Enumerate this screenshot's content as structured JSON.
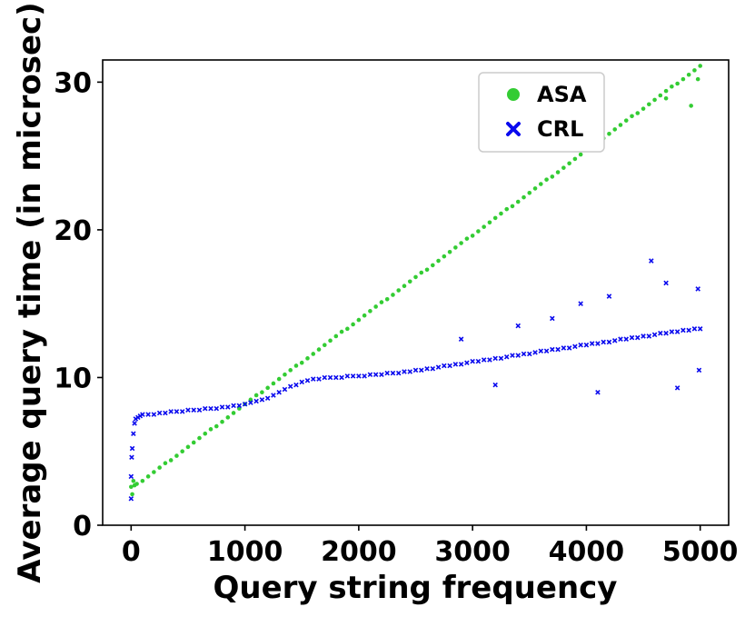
{
  "chart_data": {
    "type": "scatter",
    "title": "",
    "xlabel": "Query string frequency",
    "ylabel": "Average query time (in microsec)",
    "xlim": [
      -250,
      5250
    ],
    "ylim": [
      0,
      31.5
    ],
    "xticks": [
      0,
      1000,
      2000,
      3000,
      4000,
      5000
    ],
    "xtick_labels": [
      "0",
      "1000",
      "2000",
      "3000",
      "4000",
      "5000"
    ],
    "yticks": [
      0,
      10,
      20,
      30
    ],
    "ytick_labels": [
      "0",
      "10",
      "20",
      "30"
    ],
    "grid": false,
    "legend_position": "top-right",
    "series": [
      {
        "name": "ASA",
        "marker": "circle",
        "color": "#33cc33",
        "points": [
          [
            0,
            2.6
          ],
          [
            10,
            2.1
          ],
          [
            20,
            3.0
          ],
          [
            30,
            2.7
          ],
          [
            50,
            2.8
          ],
          [
            100,
            3.0
          ],
          [
            150,
            3.3
          ],
          [
            200,
            3.6
          ],
          [
            250,
            3.9
          ],
          [
            300,
            4.2
          ],
          [
            350,
            4.4
          ],
          [
            400,
            4.7
          ],
          [
            450,
            5.0
          ],
          [
            500,
            5.3
          ],
          [
            550,
            5.6
          ],
          [
            600,
            5.9
          ],
          [
            650,
            6.2
          ],
          [
            700,
            6.5
          ],
          [
            750,
            6.7
          ],
          [
            800,
            7.0
          ],
          [
            850,
            7.3
          ],
          [
            900,
            7.6
          ],
          [
            950,
            7.9
          ],
          [
            1000,
            8.2
          ],
          [
            1050,
            8.5
          ],
          [
            1100,
            8.8
          ],
          [
            1150,
            9.0
          ],
          [
            1200,
            9.3
          ],
          [
            1250,
            9.6
          ],
          [
            1300,
            9.9
          ],
          [
            1350,
            10.2
          ],
          [
            1400,
            10.5
          ],
          [
            1450,
            10.8
          ],
          [
            1500,
            11.0
          ],
          [
            1550,
            11.3
          ],
          [
            1600,
            11.6
          ],
          [
            1650,
            11.9
          ],
          [
            1700,
            12.2
          ],
          [
            1750,
            12.5
          ],
          [
            1800,
            12.8
          ],
          [
            1850,
            13.1
          ],
          [
            1900,
            13.3
          ],
          [
            1950,
            13.6
          ],
          [
            2000,
            13.9
          ],
          [
            2050,
            14.2
          ],
          [
            2100,
            14.5
          ],
          [
            2150,
            14.8
          ],
          [
            2200,
            15.1
          ],
          [
            2250,
            15.3
          ],
          [
            2300,
            15.6
          ],
          [
            2350,
            15.9
          ],
          [
            2400,
            16.2
          ],
          [
            2450,
            16.5
          ],
          [
            2500,
            16.8
          ],
          [
            2550,
            17.1
          ],
          [
            2600,
            17.3
          ],
          [
            2650,
            17.6
          ],
          [
            2700,
            17.9
          ],
          [
            2750,
            18.2
          ],
          [
            2800,
            18.5
          ],
          [
            2850,
            18.8
          ],
          [
            2900,
            19.1
          ],
          [
            2950,
            19.4
          ],
          [
            3000,
            19.6
          ],
          [
            3050,
            19.9
          ],
          [
            3100,
            20.2
          ],
          [
            3150,
            20.5
          ],
          [
            3200,
            20.8
          ],
          [
            3250,
            21.1
          ],
          [
            3300,
            21.4
          ],
          [
            3350,
            21.6
          ],
          [
            3400,
            21.9
          ],
          [
            3450,
            22.2
          ],
          [
            3500,
            22.5
          ],
          [
            3550,
            22.8
          ],
          [
            3600,
            23.1
          ],
          [
            3650,
            23.4
          ],
          [
            3700,
            23.6
          ],
          [
            3750,
            23.9
          ],
          [
            3800,
            24.2
          ],
          [
            3850,
            24.5
          ],
          [
            3900,
            24.8
          ],
          [
            3950,
            25.1
          ],
          [
            4000,
            25.4
          ],
          [
            4050,
            25.6
          ],
          [
            4100,
            25.9
          ],
          [
            4150,
            26.2
          ],
          [
            4200,
            26.5
          ],
          [
            4250,
            26.8
          ],
          [
            4300,
            27.1
          ],
          [
            4350,
            27.4
          ],
          [
            4400,
            27.7
          ],
          [
            4450,
            27.9
          ],
          [
            4500,
            28.2
          ],
          [
            4550,
            28.5
          ],
          [
            4600,
            28.8
          ],
          [
            4650,
            29.1
          ],
          [
            4700,
            29.4
          ],
          [
            4750,
            29.7
          ],
          [
            4800,
            29.9
          ],
          [
            4850,
            30.2
          ],
          [
            4900,
            30.5
          ],
          [
            4950,
            30.8
          ],
          [
            5000,
            31.1
          ],
          [
            4980,
            30.2
          ],
          [
            4700,
            28.9
          ],
          [
            4920,
            28.4
          ]
        ]
      },
      {
        "name": "CRL",
        "marker": "x",
        "color": "#0a0aee",
        "points": [
          [
            0,
            1.8
          ],
          [
            0,
            3.3
          ],
          [
            5,
            4.6
          ],
          [
            10,
            5.2
          ],
          [
            20,
            6.2
          ],
          [
            30,
            6.9
          ],
          [
            40,
            7.2
          ],
          [
            60,
            7.3
          ],
          [
            80,
            7.4
          ],
          [
            100,
            7.5
          ],
          [
            150,
            7.5
          ],
          [
            200,
            7.5
          ],
          [
            250,
            7.6
          ],
          [
            300,
            7.6
          ],
          [
            350,
            7.7
          ],
          [
            400,
            7.7
          ],
          [
            450,
            7.7
          ],
          [
            500,
            7.8
          ],
          [
            550,
            7.8
          ],
          [
            600,
            7.8
          ],
          [
            650,
            7.9
          ],
          [
            700,
            7.9
          ],
          [
            750,
            7.9
          ],
          [
            800,
            8.0
          ],
          [
            850,
            8.0
          ],
          [
            900,
            8.1
          ],
          [
            950,
            8.1
          ],
          [
            1000,
            8.2
          ],
          [
            1050,
            8.3
          ],
          [
            1100,
            8.4
          ],
          [
            1150,
            8.5
          ],
          [
            1200,
            8.6
          ],
          [
            1250,
            8.8
          ],
          [
            1300,
            9.0
          ],
          [
            1350,
            9.2
          ],
          [
            1400,
            9.4
          ],
          [
            1450,
            9.5
          ],
          [
            1500,
            9.7
          ],
          [
            1550,
            9.8
          ],
          [
            1600,
            9.9
          ],
          [
            1650,
            9.9
          ],
          [
            1700,
            10.0
          ],
          [
            1750,
            10.0
          ],
          [
            1800,
            10.0
          ],
          [
            1850,
            10.0
          ],
          [
            1900,
            10.1
          ],
          [
            1950,
            10.1
          ],
          [
            2000,
            10.1
          ],
          [
            2050,
            10.1
          ],
          [
            2100,
            10.2
          ],
          [
            2150,
            10.2
          ],
          [
            2200,
            10.2
          ],
          [
            2250,
            10.3
          ],
          [
            2300,
            10.3
          ],
          [
            2350,
            10.3
          ],
          [
            2400,
            10.4
          ],
          [
            2450,
            10.4
          ],
          [
            2500,
            10.5
          ],
          [
            2550,
            10.5
          ],
          [
            2600,
            10.6
          ],
          [
            2650,
            10.6
          ],
          [
            2700,
            10.7
          ],
          [
            2750,
            10.8
          ],
          [
            2800,
            10.8
          ],
          [
            2850,
            10.9
          ],
          [
            2900,
            10.9
          ],
          [
            2950,
            11.0
          ],
          [
            3000,
            11.1
          ],
          [
            3050,
            11.1
          ],
          [
            3100,
            11.2
          ],
          [
            3150,
            11.2
          ],
          [
            3200,
            11.3
          ],
          [
            3250,
            11.3
          ],
          [
            3300,
            11.4
          ],
          [
            3350,
            11.5
          ],
          [
            3400,
            11.5
          ],
          [
            3450,
            11.6
          ],
          [
            3500,
            11.6
          ],
          [
            3550,
            11.7
          ],
          [
            3600,
            11.8
          ],
          [
            3650,
            11.8
          ],
          [
            3700,
            11.9
          ],
          [
            3750,
            11.9
          ],
          [
            3800,
            12.0
          ],
          [
            3850,
            12.0
          ],
          [
            3900,
            12.1
          ],
          [
            3950,
            12.2
          ],
          [
            4000,
            12.2
          ],
          [
            4050,
            12.3
          ],
          [
            4100,
            12.3
          ],
          [
            4150,
            12.4
          ],
          [
            4200,
            12.4
          ],
          [
            4250,
            12.5
          ],
          [
            4300,
            12.6
          ],
          [
            4350,
            12.6
          ],
          [
            4400,
            12.7
          ],
          [
            4450,
            12.7
          ],
          [
            4500,
            12.8
          ],
          [
            4550,
            12.8
          ],
          [
            4600,
            12.9
          ],
          [
            4650,
            13.0
          ],
          [
            4700,
            13.0
          ],
          [
            4750,
            13.1
          ],
          [
            4800,
            13.1
          ],
          [
            4850,
            13.2
          ],
          [
            4900,
            13.2
          ],
          [
            4950,
            13.3
          ],
          [
            5000,
            13.3
          ],
          [
            4570,
            17.9
          ],
          [
            4700,
            16.4
          ],
          [
            4980,
            16.0
          ],
          [
            3950,
            15.0
          ],
          [
            4100,
            9.0
          ],
          [
            4800,
            9.3
          ],
          [
            4990,
            10.5
          ],
          [
            4200,
            15.5
          ],
          [
            3400,
            13.5
          ],
          [
            3200,
            9.5
          ],
          [
            2900,
            12.6
          ],
          [
            3700,
            14.0
          ]
        ]
      }
    ]
  }
}
